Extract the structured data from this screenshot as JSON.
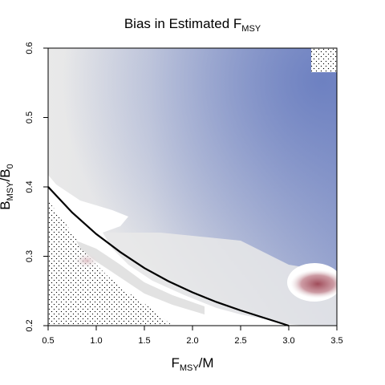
{
  "chart_data": {
    "type": "heatmap",
    "title": {
      "main": "Bias in Estimated F",
      "sub": "MSY"
    },
    "xlabel": {
      "main": "F",
      "sub": "MSY",
      "suffix": "/M"
    },
    "ylabel": {
      "main": "B",
      "sub": "MSY",
      "mid": "/B",
      "sub2": "0"
    },
    "xlim": [
      0.5,
      3.5
    ],
    "ylim": [
      0.2,
      0.6
    ],
    "xticks": [
      "0.5",
      "1.0",
      "1.5",
      "2.0",
      "2.5",
      "3.0",
      "3.5"
    ],
    "yticks": [
      "0.2",
      "0.3",
      "0.4",
      "0.5",
      "0.6"
    ],
    "colors": {
      "neutral": "#e9e9e9",
      "negative": "#6a7ec0",
      "positive": "#a8505e",
      "excluded": "#ffffff",
      "curve": "#000000"
    },
    "grid": false,
    "curve": {
      "x": [
        0.5,
        0.75,
        1.0,
        1.25,
        1.5,
        1.75,
        2.0,
        2.25,
        2.5,
        2.75,
        3.0
      ],
      "y": [
        0.4,
        0.363,
        0.332,
        0.306,
        0.283,
        0.264,
        0.248,
        0.234,
        0.222,
        0.211,
        0.2
      ]
    }
  }
}
